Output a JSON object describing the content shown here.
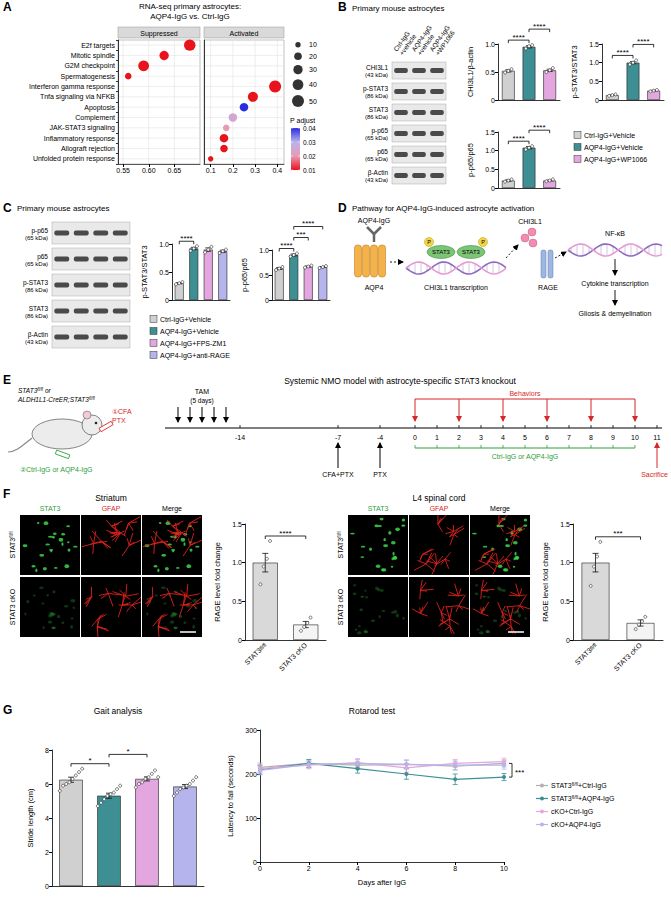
{
  "superscript": "fl/fl",
  "letters": [
    "A",
    "B",
    "C",
    "D",
    "E",
    "F",
    "G"
  ],
  "chart_data": [
    {
      "type": "scatter",
      "title": [
        "RNA-seq primary astrocytes:",
        "AQP4-IgG vs. Ctrl-IgG"
      ],
      "categories": [
        "E2f targets",
        "Mitotic spindle",
        "G2M checkpoint",
        "Spermatogenesis",
        "Interferon gamma response",
        "Tnfa signaling via NFKB",
        "Apoptosis",
        "Complement",
        "JAK-STAT3 signaling",
        "Inflammatory response",
        "Allograft rejection",
        "Unfolded protein response"
      ],
      "facets": [
        {
          "name": "Suppressed",
          "xlim": [
            0.54,
            0.7
          ],
          "xticks": [
            {
              "value": 0.55,
              "label": "0.55"
            },
            {
              "value": 0.6,
              "label": "0.60"
            },
            {
              "value": 0.65,
              "label": "0.65"
            }
          ],
          "values": [
            0.68,
            0.63,
            0.59,
            0.56,
            null,
            null,
            null,
            null,
            null,
            null,
            null,
            null
          ],
          "sizes": [
            45,
            30,
            40,
            15,
            null,
            null,
            null,
            null,
            null,
            null,
            null,
            null
          ],
          "p_adjust": [
            0.01,
            0.01,
            0.01,
            0.01,
            null,
            null,
            null,
            null,
            null,
            null,
            null,
            null
          ]
        },
        {
          "name": "Activated",
          "xlim": [
            0.07,
            0.43
          ],
          "xticks": [
            0.1,
            0.2,
            0.3,
            0.4
          ],
          "values": [
            null,
            null,
            null,
            null,
            0.39,
            0.29,
            0.25,
            0.2,
            0.17,
            0.16,
            0.16,
            0.1
          ],
          "sizes": [
            null,
            null,
            null,
            null,
            50,
            35,
            25,
            25,
            15,
            25,
            20,
            10
          ],
          "p_adjust": [
            null,
            null,
            null,
            null,
            0.01,
            0.01,
            0.04,
            0.025,
            0.02,
            0.01,
            0.01,
            0.01
          ]
        }
      ],
      "size_legend": [
        10,
        20,
        30,
        40,
        50
      ],
      "color_bar": {
        "title": "P adjust",
        "range": [
          0.01,
          0.04
        ],
        "ticks": [
          0.01,
          0.02,
          0.03,
          0.04
        ],
        "colors": [
          "#e8141c",
          "#e89ab4",
          "#b9b3ee",
          "#2b2be0"
        ]
      },
      "grid": true
    },
    {
      "type": "bar",
      "ylabel": "CHI3L1/β-actin",
      "categories": [
        "Ctrl-IgG+Vehicle",
        "AQP4-IgG+Vehicle",
        "AQP4-IgG+WP1066"
      ],
      "values": [
        0.52,
        0.95,
        0.53
      ],
      "errors": [
        0.02,
        0.02,
        0.02
      ],
      "points": [
        [
          0.49,
          0.52,
          0.55
        ],
        [
          0.92,
          0.96,
          0.98
        ],
        [
          0.5,
          0.53,
          0.57
        ]
      ],
      "colors": [
        "#d0d0d0",
        "#3d8f93",
        "#e3a6df"
      ],
      "ylim": [
        0,
        1
      ],
      "yticks": [
        0,
        0.5,
        {
          "value": 1,
          "label": "1.0"
        }
      ],
      "significance": [
        {
          "from": 0,
          "to": 1,
          "label": "****"
        },
        {
          "from": 1,
          "to": 2,
          "label": "****"
        }
      ],
      "tick_labels": "y"
    },
    {
      "type": "bar",
      "ylabel": "p-STAT3/STAT3",
      "categories": [
        "Ctrl-IgG+Vehicle",
        "AQP4-IgG+Vehicle",
        "AQP4-IgG+WP1066"
      ],
      "values": [
        0.13,
        1.0,
        0.25
      ],
      "errors": [
        0.01,
        0.03,
        0.01
      ],
      "points": [
        [
          0.11,
          0.13,
          0.15
        ],
        [
          0.95,
          1.0,
          1.06
        ],
        [
          0.23,
          0.25,
          0.27
        ]
      ],
      "colors": [
        "#d0d0d0",
        "#3d8f93",
        "#e3a6df"
      ],
      "ylim": [
        0,
        1.5
      ],
      "yticks": [
        0,
        0.5,
        {
          "value": 1,
          "label": "1.0"
        },
        1.5
      ],
      "significance": [
        {
          "from": 0,
          "to": 1,
          "label": "****"
        },
        {
          "from": 1,
          "to": 2,
          "label": "****"
        }
      ],
      "tick_labels": "y"
    },
    {
      "type": "bar",
      "ylabel": "p-p65/p65",
      "categories": [
        "Ctrl-IgG+Vehicle",
        "AQP4-IgG+Vehicle",
        "AQP4-IgG+WP1066"
      ],
      "values": [
        0.2,
        1.08,
        0.2
      ],
      "errors": [
        0.02,
        0.03,
        0.01
      ],
      "points": [
        [
          0.17,
          0.2,
          0.23
        ],
        [
          1.03,
          1.08,
          1.12
        ],
        [
          0.18,
          0.2,
          0.23
        ]
      ],
      "colors": [
        "#d0d0d0",
        "#3d8f93",
        "#e3a6df"
      ],
      "ylim": [
        0,
        1.5
      ],
      "yticks": [
        0,
        0.5,
        {
          "value": 1,
          "label": "1.0"
        },
        1.5
      ],
      "significance": [
        {
          "from": 0,
          "to": 1,
          "label": "****"
        },
        {
          "from": 1,
          "to": 2,
          "label": "****"
        }
      ],
      "tick_labels": "y"
    },
    {
      "type": "bar",
      "ylabel": "p-STAT3/STAT3",
      "categories": [
        "Ctrl-IgG+Vehicle",
        "AQP4-IgG+Vehicle",
        "AQP4-IgG+FPS-ZM1",
        "AQP4-IgG+anti-RAGE"
      ],
      "values": [
        0.3,
        0.92,
        0.9,
        0.87
      ],
      "errors": [
        0.01,
        0.02,
        0.03,
        0.02
      ],
      "points": [
        [
          0.28,
          0.3,
          0.32
        ],
        [
          0.88,
          0.92,
          0.96
        ],
        [
          0.85,
          0.9,
          0.95
        ],
        [
          0.84,
          0.87,
          0.9
        ]
      ],
      "colors": [
        "#d0d0d0",
        "#3d8f93",
        "#e3a6df",
        "#b5b4ec"
      ],
      "ylim": [
        0,
        1
      ],
      "yticks": [
        0,
        0.5,
        {
          "value": 1,
          "label": "1.0"
        }
      ],
      "significance": [
        {
          "from": 0,
          "to": 1,
          "label": "****"
        }
      ],
      "tick_labels": "y"
    },
    {
      "type": "bar",
      "ylabel": "p-p65/p65",
      "categories": [
        "Ctrl-IgG+Vehicle",
        "AQP4-IgG+Vehicle",
        "AQP4-IgG+FPS-ZM1",
        "AQP4-IgG+anti-RAGE"
      ],
      "values": [
        0.63,
        0.9,
        0.67,
        0.66
      ],
      "errors": [
        0.02,
        0.02,
        0.01,
        0.01
      ],
      "points": [
        [
          0.6,
          0.63,
          0.66
        ],
        [
          0.87,
          0.9,
          0.93
        ],
        [
          0.65,
          0.67,
          0.69
        ],
        [
          0.64,
          0.66,
          0.68
        ]
      ],
      "colors": [
        "#d0d0d0",
        "#3d8f93",
        "#e3a6df",
        "#b5b4ec"
      ],
      "ylim": [
        0,
        1
      ],
      "yticks": [
        0,
        0.5,
        {
          "value": 1,
          "label": "1.0"
        }
      ],
      "significance": [
        {
          "from": 0,
          "to": 1,
          "label": "****"
        },
        {
          "from": 1,
          "to": 2,
          "label": "***"
        },
        {
          "from": 1,
          "to": 3,
          "label": "****"
        }
      ],
      "tick_labels": "y"
    },
    {
      "type": "bar",
      "ylabel": "RAGE level fold change",
      "categories": [
        "STAT3fl/fl",
        "STAT3 cKO"
      ],
      "values": [
        1.0,
        0.2
      ],
      "errors": [
        0.12,
        0.04
      ],
      "points": [
        [
          0.72,
          0.95,
          1.05,
          1.28
        ],
        [
          0.12,
          0.17,
          0.22,
          0.29
        ]
      ],
      "colors": [
        "#d9d9d9",
        "#f4f4f4"
      ],
      "ylim": [
        0,
        1.5
      ],
      "yticks": [
        0,
        0.5,
        {
          "value": 1,
          "label": "1.0"
        },
        1.5
      ],
      "significance": [
        {
          "from": 0,
          "to": 1,
          "label": "****"
        }
      ],
      "tick_labels": true
    },
    {
      "type": "bar",
      "ylabel": "RAGE level fold change",
      "categories": [
        "STAT3fl/fl",
        "STAT3 cKO"
      ],
      "values": [
        1.0,
        0.22
      ],
      "errors": [
        0.12,
        0.04
      ],
      "points": [
        [
          0.7,
          0.95,
          1.08,
          1.27
        ],
        [
          0.14,
          0.2,
          0.24,
          0.3
        ]
      ],
      "colors": [
        "#d9d9d9",
        "#f4f4f4"
      ],
      "ylim": [
        0,
        1.5
      ],
      "yticks": [
        0,
        0.5,
        {
          "value": 1,
          "label": "1.0"
        },
        1.5
      ],
      "significance": [
        {
          "from": 0,
          "to": 1,
          "label": "***"
        }
      ],
      "tick_labels": true
    },
    {
      "type": "bar",
      "title": "Gait analysis",
      "ylabel": "Stride length (cm)",
      "categories": [
        "STAT3fl/fl+Ctrl-IgG",
        "STAT3fl/fl+AQP4-IgG",
        "cKO+Ctrl-IgG",
        "cKO+AQP4-IgG"
      ],
      "values": [
        6.25,
        5.31,
        6.3,
        5.85
      ],
      "errors": [
        0.15,
        0.15,
        0.12,
        0.12
      ],
      "points": [
        [
          5.6,
          5.9,
          6.0,
          6.1,
          6.3,
          6.5,
          6.7,
          6.9
        ],
        [
          4.7,
          4.9,
          5.1,
          5.3,
          5.4,
          5.5,
          5.7,
          5.9
        ],
        [
          5.8,
          6.0,
          6.1,
          6.3,
          6.4,
          6.6,
          6.8,
          6.4
        ],
        [
          5.3,
          5.5,
          5.7,
          5.8,
          5.9,
          6.0,
          6.2,
          6.4
        ]
      ],
      "colors": [
        "#d0d0d0",
        "#3d8f93",
        "#e3a6df",
        "#b5b4ec"
      ],
      "ylim": [
        0,
        8
      ],
      "yticks": [
        0,
        2,
        4,
        6,
        8
      ],
      "significance": [
        {
          "from": 0,
          "to": 1,
          "label": "*"
        },
        {
          "from": 1,
          "to": 2,
          "label": "*"
        }
      ],
      "tick_labels": "y"
    },
    {
      "type": "line",
      "title": "Rotarod test",
      "xlabel": "Days after IgG",
      "ylabel": "Latency to fall (seconds)",
      "x": [
        0,
        2,
        4,
        6,
        8,
        10
      ],
      "xlim": [
        0,
        10
      ],
      "xticks": [
        0,
        2,
        4,
        6,
        8,
        10
      ],
      "ylim": [
        0,
        300
      ],
      "yticks": [
        0,
        100,
        200,
        300
      ],
      "series": [
        {
          "name": "STAT3fl/fl+Ctrl-IgG",
          "color": "#b0b0b0",
          "values": [
            215,
            224,
            220,
            222,
            218,
            224
          ],
          "errors": [
            10,
            8,
            9,
            10,
            9,
            8
          ]
        },
        {
          "name": "STAT3fl/fl+AQP4-IgG",
          "color": "#3d8f93",
          "values": [
            210,
            224,
            212,
            200,
            188,
            193
          ],
          "errors": [
            10,
            9,
            10,
            12,
            12,
            8
          ]
        },
        {
          "name": "cKO+Ctrl-IgG",
          "color": "#e3a6df",
          "values": [
            212,
            220,
            226,
            214,
            224,
            228
          ],
          "errors": [
            9,
            8,
            9,
            10,
            9,
            8
          ]
        },
        {
          "name": "cKO+AQP4-IgG",
          "color": "#b5b4ec",
          "values": [
            208,
            222,
            224,
            222,
            220,
            220
          ],
          "errors": [
            10,
            8,
            9,
            9,
            10,
            9
          ]
        }
      ],
      "significance": [
        {
          "from": 0,
          "to": 1,
          "label": "***"
        }
      ],
      "legend": "right"
    }
  ],
  "blot_B": {
    "title": "Primary mouse astrocytes",
    "lanes": [
      [
        "Ctrl-IgG",
        "+vehicle"
      ],
      [
        "AQP4-IgG",
        "+vehicle"
      ],
      [
        "AQP4-IgG",
        "+WP1066"
      ]
    ],
    "rows": [
      [
        "CHI3L1",
        "(43 kDa)"
      ],
      [
        "p-STAT3",
        "(86 kDa)"
      ],
      [
        "STAT3",
        "(86 kDa)"
      ],
      [
        "p-p65",
        "(65 kDa)"
      ],
      [
        "p65",
        "(65 kDa)"
      ],
      [
        "β-Actin",
        "(43 kDa)"
      ]
    ]
  },
  "blot_C": {
    "title": "Primary mouse astrocytes",
    "rows": [
      [
        "p-p65",
        "(65 kDa)"
      ],
      [
        "p65",
        "(65 kDa)"
      ],
      [
        "p-STAT3",
        "(86 kDa)"
      ],
      [
        "STAT3",
        "(86 kDa)"
      ],
      [
        "β-Actin",
        "(43 kDa)"
      ]
    ]
  },
  "pathway_D": {
    "title": "Pathway for AQP4-IgG-induced astrocyte activation",
    "antibody": "AQP4-IgG",
    "channel": "AQP4",
    "dimer": "STAT3",
    "phospho": "P",
    "gene": "CHI3L1 transcription",
    "protein": "CHI3L1",
    "receptor": "RAGE",
    "tf": "NF-κB",
    "output": "Cytokine transcription",
    "outcome": "Gliosis & demyelination"
  },
  "schematic_E": {
    "title": "Systemic NMO model with astrocyte-specific STAT3 knockout",
    "genotypes": [
      "STAT3fl/fl",
      "ALDH1L1-CreER;STAT3fl/fl"
    ],
    "or": "or",
    "injection_1": [
      "①CFA",
      "PTX"
    ],
    "injection_2": "②Ctrl-IgG or AQP4-IgG",
    "tam": "TAM",
    "tam_duration": "(5 days)",
    "tam_arrows": 5,
    "days": [
      -14,
      -7,
      -4,
      0,
      1,
      2,
      3,
      4,
      5,
      6,
      7,
      8,
      9,
      10,
      11
    ],
    "cfa": {
      "day": -7,
      "label": "CFA+PTX"
    },
    "ptx": {
      "day": -4,
      "label": "PTX"
    },
    "behaviors": {
      "label": "Behaviors",
      "days": [
        0,
        2,
        4,
        6,
        8,
        10
      ]
    },
    "igg": {
      "label": "Ctrl-IgG or AQP4-IgG",
      "days": [
        0,
        10
      ]
    },
    "sacrifice": {
      "day": 11,
      "label": "Sacrifice"
    }
  },
  "images_F": [
    {
      "title": "Striatum",
      "channels": [
        "STAT3",
        "GFAP",
        "Merge"
      ],
      "rows": [
        "STAT3fl/fl",
        "STAT3 cKO"
      ]
    },
    {
      "title": "L4 spinal cord",
      "channels": [
        "STAT3",
        "GFAP",
        "Merge"
      ],
      "rows": [
        "STAT3fl/fl",
        "STAT3 cKO"
      ]
    }
  ]
}
